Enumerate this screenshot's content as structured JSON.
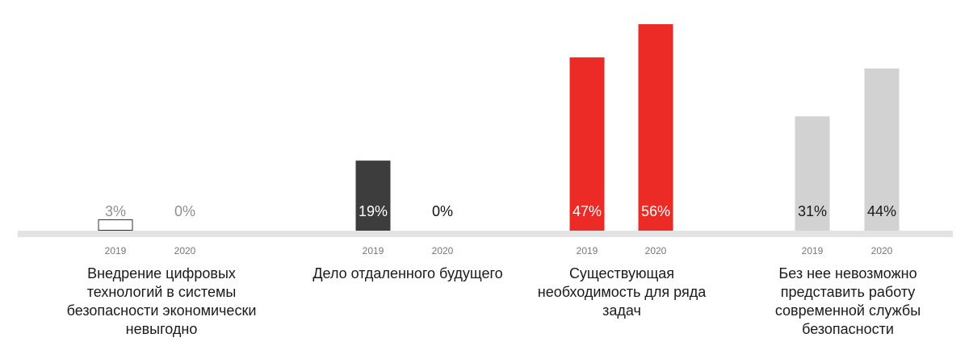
{
  "chart_data": {
    "type": "bar",
    "groups": [
      {
        "label": "Внедрение цифровых технологий в системы безопасности экономически невыгодно",
        "bars": [
          {
            "year": "2019",
            "value": 3,
            "value_label": "3%"
          },
          {
            "year": "2020",
            "value": 0,
            "value_label": "0%"
          }
        ]
      },
      {
        "label": "Дело отдаленного будущего",
        "bars": [
          {
            "year": "2019",
            "value": 19,
            "value_label": "19%"
          },
          {
            "year": "2020",
            "value": 0,
            "value_label": "0%"
          }
        ]
      },
      {
        "label": "Существующая необходимость для ряда задач",
        "bars": [
          {
            "year": "2019",
            "value": 47,
            "value_label": "47%"
          },
          {
            "year": "2020",
            "value": 56,
            "value_label": "56%"
          }
        ]
      },
      {
        "label": "Без нее невозможно представить работу современной службы безопасности",
        "bars": [
          {
            "year": "2019",
            "value": 31,
            "value_label": "31%"
          },
          {
            "year": "2020",
            "value": 44,
            "value_label": "44%"
          }
        ]
      }
    ],
    "ylim": [
      0,
      56
    ],
    "grid": false,
    "legend": "none",
    "colors": {
      "group1": "#ffffff",
      "group1_border": "#333333",
      "group2": "#3d3d3d",
      "group3": "#ec2a26",
      "group4": "#d2d2d2",
      "baseline": "#e3e3e3",
      "year_text": "#777777"
    }
  }
}
